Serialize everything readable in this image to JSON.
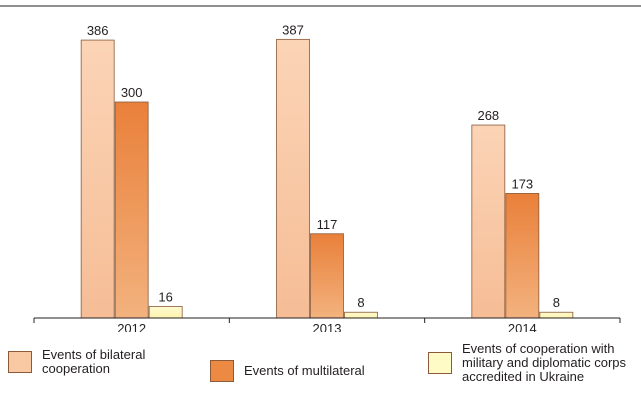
{
  "chart_data": {
    "type": "bar",
    "categories": [
      "2012",
      "2013",
      "2014"
    ],
    "series": [
      {
        "name": "Events of bilateral cooperation",
        "values": [
          386,
          387,
          268
        ],
        "color": "#f9c9a4"
      },
      {
        "name": "Events of multilateral",
        "values": [
          300,
          117,
          173
        ],
        "color": "#ec8a43"
      },
      {
        "name": "Events of cooperation with military and diplomatic corps accredited in Ukraine",
        "values": [
          16,
          8,
          8
        ],
        "color": "#fffbc7"
      }
    ],
    "value_labels": true,
    "ylim": [
      0,
      400
    ],
    "grid": false,
    "legend_placement": "bottom"
  }
}
